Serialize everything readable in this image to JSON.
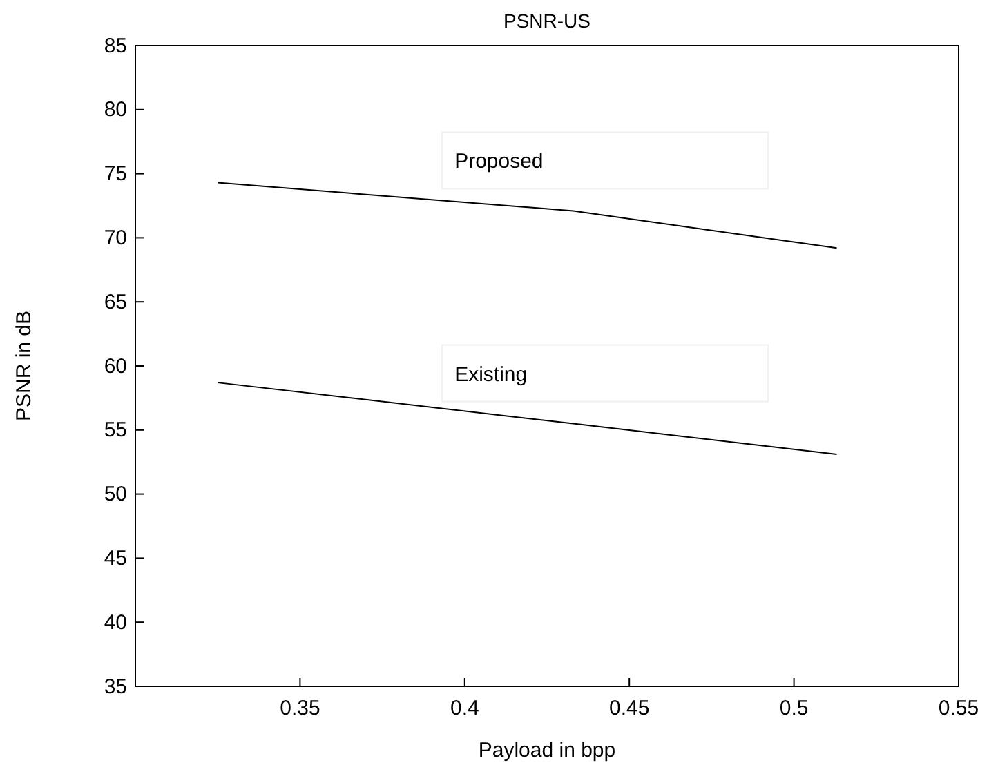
{
  "chart_data": {
    "type": "line",
    "title": "PSNR-US",
    "xlabel": "Payload in bpp",
    "ylabel": "PSNR in dB",
    "x": [
      0.325,
      0.433,
      0.513
    ],
    "series": [
      {
        "name": "Proposed",
        "color": "#000000",
        "values": [
          74.3,
          72.1,
          69.2
        ]
      },
      {
        "name": "Existing",
        "color": "#000000",
        "values": [
          58.7,
          55.5,
          53.1
        ]
      }
    ],
    "xlim": [
      0.3,
      0.55
    ],
    "xticks": [
      0.35,
      0.4,
      0.45,
      0.5,
      0.55
    ],
    "ylim": [
      35,
      85
    ],
    "yticks": [
      35,
      40,
      45,
      50,
      55,
      60,
      65,
      70,
      75,
      80,
      85
    ],
    "grid": false,
    "legend": false,
    "marker": "none",
    "line_style": "solid"
  }
}
